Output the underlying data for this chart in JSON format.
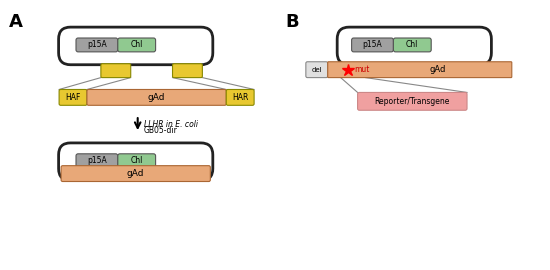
{
  "panel_A_label": "A",
  "panel_B_label": "B",
  "colors": {
    "gray": "#a0a0a0",
    "light_gray": "#b0b0b0",
    "green": "#90c990",
    "yellow": "#e8c830",
    "orange": "#e8a878",
    "pink": "#f0a0a0",
    "white": "#ffffff",
    "black": "#222222",
    "line_gray": "#888888"
  },
  "labels": {
    "p15A": "p15A",
    "chl": "Chl",
    "gAd": "gAd",
    "HAF": "HAF",
    "HAR": "HAR",
    "del": "del",
    "mut": "mut",
    "reporter": "Reporter/Transgene",
    "arrow_text1": "LLHR in E. coli",
    "arrow_text2": "GB05-dir"
  }
}
